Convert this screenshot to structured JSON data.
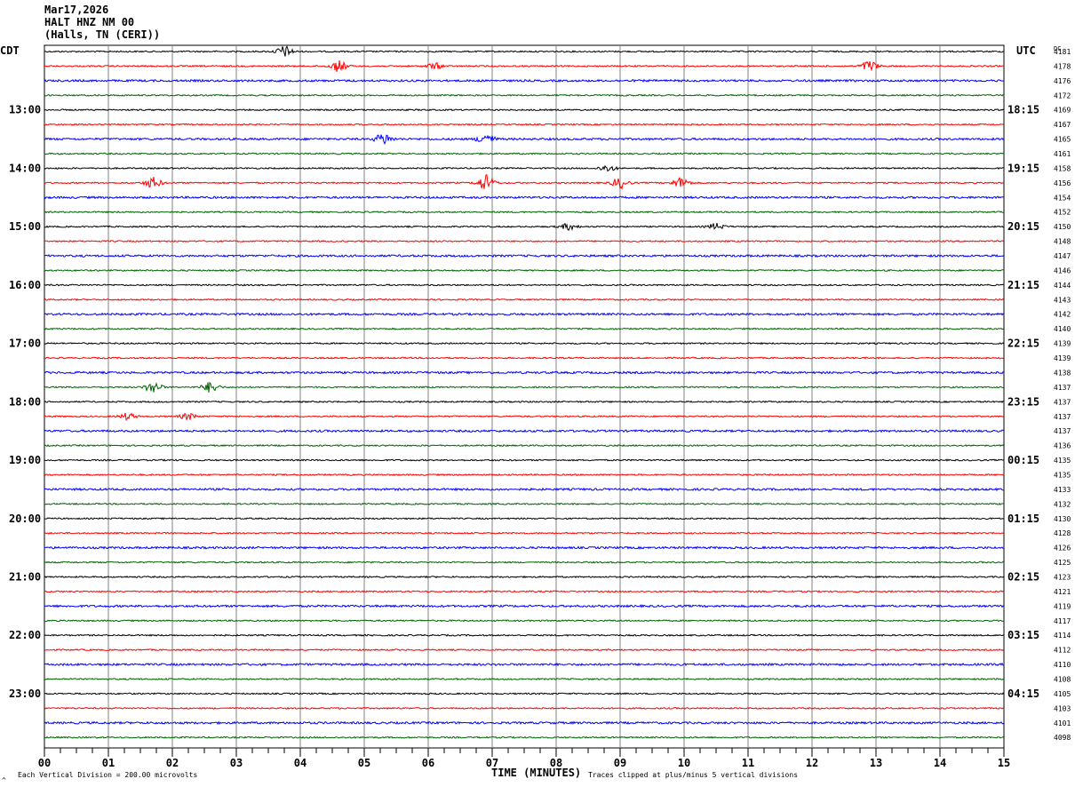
{
  "header": {
    "date": "Mar17,2026",
    "station": "HALT HNZ NM 00",
    "location": "(Halls, TN (CERI))"
  },
  "labels": {
    "left_tz": "CDT",
    "right_tz": "UTC",
    "dc_header": "DC"
  },
  "footer": {
    "vertical_division": "Each Vertical Division =  200.00 microvolts",
    "xlabel": "TIME (MINUTES)",
    "clip_note": "Traces clipped at plus/minus 5 vertical divisions",
    "corner_mark": "^"
  },
  "colors": {
    "trace_cycle": [
      "#000000",
      "#ff0000",
      "#0000ff",
      "#006400"
    ],
    "grid": "#808080"
  },
  "chart_data": {
    "type": "line",
    "title": "HALT HNZ NM 00",
    "xlabel": "TIME (MINUTES)",
    "xlim": [
      0,
      15
    ],
    "x_ticks": [
      "00",
      "01",
      "02",
      "03",
      "04",
      "05",
      "06",
      "07",
      "08",
      "09",
      "10",
      "11",
      "12",
      "13",
      "14",
      "15"
    ],
    "traces_per_hour": 4,
    "trace_count": 48,
    "left_hour_labels": [
      "13:00",
      "14:00",
      "15:00",
      "16:00",
      "17:00",
      "18:00",
      "19:00",
      "20:00",
      "21:00",
      "22:00",
      "23:00"
    ],
    "right_hour_labels": [
      "18:15",
      "19:15",
      "20:15",
      "21:15",
      "22:15",
      "23:15",
      "00:15",
      "01:15",
      "02:15",
      "03:15",
      "04:15"
    ],
    "hour_label_first_trace": 4,
    "dc_offsets": [
      "4181",
      "4178",
      "4176",
      "4172",
      "4169",
      "4167",
      "4165",
      "4161",
      "4158",
      "4156",
      "4154",
      "4152",
      "4150",
      "4148",
      "4147",
      "4146",
      "4144",
      "4143",
      "4142",
      "4140",
      "4139",
      "4139",
      "4138",
      "4137",
      "4137",
      "4137",
      "4137",
      "4136",
      "4135",
      "4135",
      "4133",
      "4132",
      "4130",
      "4128",
      "4126",
      "4125",
      "4123",
      "4121",
      "4119",
      "4117",
      "4114",
      "4112",
      "4110",
      "4108",
      "4105",
      "4103",
      "4101",
      "4098"
    ],
    "events": [
      {
        "trace": 0,
        "minute": 3.75,
        "amplitude": "medium"
      },
      {
        "trace": 1,
        "minute": 4.6,
        "amplitude": "medium"
      },
      {
        "trace": 1,
        "minute": 6.1,
        "amplitude": "small"
      },
      {
        "trace": 1,
        "minute": 12.9,
        "amplitude": "medium"
      },
      {
        "trace": 6,
        "minute": 5.3,
        "amplitude": "medium"
      },
      {
        "trace": 6,
        "minute": 6.9,
        "amplitude": "medium"
      },
      {
        "trace": 8,
        "minute": 8.8,
        "amplitude": "small"
      },
      {
        "trace": 9,
        "minute": 1.7,
        "amplitude": "medium"
      },
      {
        "trace": 9,
        "minute": 6.9,
        "amplitude": "large"
      },
      {
        "trace": 9,
        "minute": 9.0,
        "amplitude": "medium"
      },
      {
        "trace": 9,
        "minute": 9.95,
        "amplitude": "medium"
      },
      {
        "trace": 12,
        "minute": 8.2,
        "amplitude": "small"
      },
      {
        "trace": 12,
        "minute": 10.5,
        "amplitude": "small"
      },
      {
        "trace": 23,
        "minute": 1.7,
        "amplitude": "medium"
      },
      {
        "trace": 23,
        "minute": 2.6,
        "amplitude": "medium"
      },
      {
        "trace": 25,
        "minute": 1.3,
        "amplitude": "small"
      },
      {
        "trace": 25,
        "minute": 2.25,
        "amplitude": "small"
      }
    ]
  }
}
